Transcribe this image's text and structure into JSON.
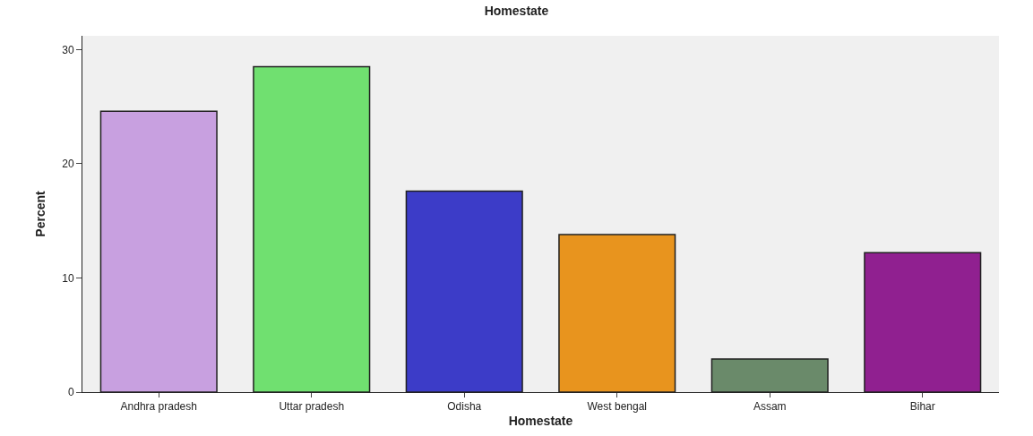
{
  "chart_data": {
    "type": "bar",
    "title": "Homestate",
    "xlabel": "Homestate",
    "ylabel": "Percent",
    "categories": [
      "Andhra pradesh",
      "Uttar pradesh",
      "Odisha",
      "West bengal",
      "Assam",
      "Bihar"
    ],
    "values": [
      24.6,
      28.5,
      17.6,
      13.8,
      2.9,
      12.2
    ],
    "colors": [
      "#c8a0e0",
      "#70e070",
      "#3c3cc8",
      "#e8941e",
      "#6a8a6a",
      "#902090"
    ],
    "ylim": [
      0,
      31.2
    ],
    "yticks": [
      0,
      10,
      20,
      30
    ],
    "grid": false
  }
}
